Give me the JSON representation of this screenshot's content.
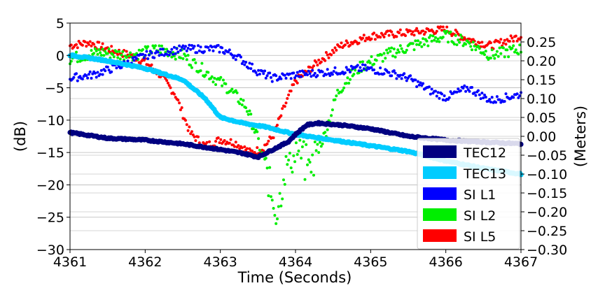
{
  "chart_data": {
    "type": "scatter",
    "xlabel": "Time (Seconds)",
    "ylabel_left": "(dB)",
    "ylabel_right": "(Meters)",
    "xlim": [
      4361,
      4367
    ],
    "ylim_left": [
      -30,
      5
    ],
    "ylim_right": [
      -0.3,
      0.3
    ],
    "x_ticks": [
      "4361",
      "4362",
      "4363",
      "4364",
      "4365",
      "4366",
      "4367"
    ],
    "y_ticks_left": [
      "5",
      "0",
      "−5",
      "−10",
      "−15",
      "−20",
      "−25",
      "−30"
    ],
    "y_ticks_right": [
      "0.25",
      "0.20",
      "0.15",
      "0.10",
      "0.05",
      "0.00",
      "−0.05",
      "−0.10",
      "−0.15",
      "−0.20",
      "−0.25",
      "−0.30"
    ],
    "grid": "horizontal",
    "legend_position": "lower-right",
    "series": [
      {
        "name": "TEC12",
        "axis": "right",
        "color": "#000080",
        "marker": "large",
        "x": [
          4361.0,
          4361.5,
          4362.0,
          4362.5,
          4363.0,
          4363.3,
          4363.5,
          4363.7,
          4363.9,
          4364.0,
          4364.15,
          4364.3,
          4364.6,
          4365.0,
          4365.5,
          4366.0,
          4366.5,
          4367.0
        ],
        "y": [
          0.01,
          -0.005,
          -0.01,
          -0.02,
          -0.035,
          -0.045,
          -0.055,
          -0.035,
          -0.015,
          0.005,
          0.03,
          0.035,
          0.03,
          0.02,
          0.0,
          -0.01,
          -0.015,
          -0.02
        ]
      },
      {
        "name": "TEC13",
        "axis": "right",
        "color": "#00ccff",
        "marker": "large",
        "x": [
          4361.0,
          4361.5,
          4362.0,
          4362.5,
          4362.8,
          4363.0,
          4363.3,
          4363.6,
          4364.0,
          4364.5,
          4365.0,
          4365.5,
          4366.0,
          4366.5,
          4367.0
        ],
        "y": [
          0.215,
          0.2,
          0.18,
          0.15,
          0.1,
          0.05,
          0.035,
          0.025,
          0.005,
          -0.01,
          -0.025,
          -0.04,
          -0.065,
          -0.085,
          -0.1
        ]
      },
      {
        "name": "SI L1",
        "axis": "left",
        "color": "#0000ff",
        "marker": "small",
        "x": [
          4361.0,
          4361.3,
          4361.7,
          4362.0,
          4362.5,
          4363.0,
          4363.2,
          4363.5,
          4363.7,
          4364.0,
          4364.5,
          4364.9,
          4365.2,
          4365.5,
          4365.8,
          4366.0,
          4366.3,
          4366.6,
          4367.0
        ],
        "y": [
          -3.5,
          -3.0,
          -1.5,
          0.0,
          1.0,
          1.0,
          0.0,
          -2.5,
          -3.5,
          -3.0,
          -2.5,
          -2.0,
          -2.5,
          -3.5,
          -5.5,
          -6.5,
          -5.0,
          -7.0,
          -6.0
        ]
      },
      {
        "name": "SI L2",
        "axis": "left",
        "color": "#00ee00",
        "marker": "small",
        "x": [
          4361.0,
          4361.4,
          4361.8,
          4362.2,
          4362.5,
          4362.8,
          4363.1,
          4363.35,
          4363.5,
          4363.65,
          4363.75,
          4363.85,
          4364.0,
          4364.2,
          4364.4,
          4364.55,
          4364.7,
          4364.9,
          4365.3,
          4365.7,
          4366.0,
          4366.3,
          4366.6,
          4367.0
        ],
        "y": [
          -0.5,
          0.5,
          0.0,
          1.0,
          0.0,
          -2.5,
          -5.0,
          -8.0,
          -13.0,
          -20.0,
          -24.0,
          -18.0,
          -15.0,
          -17.0,
          -12.0,
          -6.0,
          -3.5,
          -1.5,
          0.5,
          2.0,
          3.0,
          2.0,
          0.0,
          1.0
        ]
      },
      {
        "name": "SI L5",
        "axis": "left",
        "color": "#ff0000",
        "marker": "small",
        "x": [
          4361.0,
          4361.25,
          4361.5,
          4361.8,
          4362.0,
          4362.2,
          4362.4,
          4362.6,
          4362.8,
          4363.0,
          4363.2,
          4363.4,
          4363.55,
          4363.7,
          4363.85,
          4364.0,
          4364.3,
          4364.6,
          4365.0,
          4365.5,
          4366.0,
          4366.3,
          4366.6,
          4367.0
        ],
        "y": [
          1.5,
          2.0,
          1.0,
          0.0,
          -1.0,
          -3.0,
          -6.0,
          -12.0,
          -14.0,
          -13.0,
          -13.5,
          -15.0,
          -14.5,
          -12.5,
          -8.0,
          -4.0,
          -1.0,
          1.5,
          3.0,
          3.5,
          4.0,
          2.5,
          1.5,
          3.0
        ]
      }
    ]
  }
}
